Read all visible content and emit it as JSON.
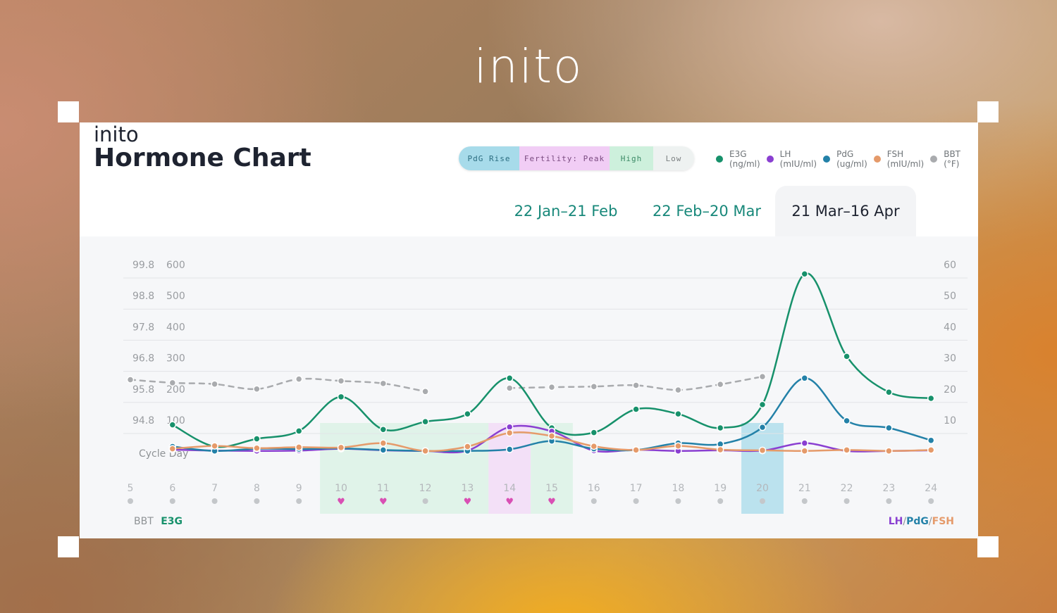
{
  "page": {
    "brand_top": "inito",
    "card": {
      "brand": "inito",
      "title": "Hormone Chart"
    }
  },
  "status_legend": {
    "pdg_rise": "PdG Rise",
    "fertility_peak": "Fertility: Peak",
    "high": "High",
    "low": "Low",
    "colors": {
      "pdg_rise": "#a7dbea",
      "fertility_peak": "#f1cdf5",
      "high": "#cdf0dc",
      "low": "#eef2f1"
    }
  },
  "series_legend": [
    {
      "name": "E3G",
      "unit": "(ng/ml)",
      "color": "#17916b"
    },
    {
      "name": "LH",
      "unit": "(mIU/ml)",
      "color": "#8a3fd1"
    },
    {
      "name": "PdG",
      "unit": "(ug/ml)",
      "color": "#2381a8"
    },
    {
      "name": "FSH",
      "unit": "(mIU/ml)",
      "color": "#e59a6a"
    },
    {
      "name": "BBT",
      "unit": "(°F)",
      "color": "#a9abae"
    }
  ],
  "tabs": [
    {
      "label": "22 Jan–21 Feb"
    },
    {
      "label": "22 Feb–20 Mar"
    },
    {
      "label": "21 Mar–16 Apr",
      "selected": true
    }
  ],
  "axis_tags": {
    "bbt": "BBT",
    "e3g": "E3G",
    "lh": "LH",
    "pdg": "PdG",
    "fsh": "FSH",
    "sep": "/"
  },
  "chart_data": {
    "type": "line",
    "x_label": "Cycle Day",
    "x": [
      5,
      6,
      7,
      8,
      9,
      10,
      11,
      12,
      13,
      14,
      15,
      16,
      17,
      18,
      19,
      20,
      21,
      22,
      23,
      24
    ],
    "left_axis_bbt": {
      "ticks": [
        "99.8",
        "98.8",
        "97.8",
        "96.8",
        "95.8",
        "94.8"
      ],
      "values": [
        99.8,
        98.8,
        97.8,
        96.8,
        95.8,
        94.8
      ]
    },
    "left_axis_e3g": {
      "ticks": [
        "600",
        "500",
        "400",
        "300",
        "200",
        "100"
      ],
      "values": [
        600,
        500,
        400,
        300,
        200,
        100
      ]
    },
    "right_axis": {
      "ticks": [
        "60",
        "50",
        "40",
        "30",
        "20",
        "10"
      ],
      "values": [
        60,
        50,
        40,
        30,
        20,
        10
      ]
    },
    "e3g_ylim": [
      -20,
      600
    ],
    "right_ylim": [
      -2,
      60
    ],
    "bbt_ylim": [
      93.6,
      99.8
    ],
    "grid": true,
    "series": [
      {
        "name": "BBT",
        "axis": "bbt",
        "style": "dashed",
        "color": "#a9abae",
        "x": [
          5,
          6,
          7,
          8,
          9,
          10,
          11,
          12
        ],
        "values": [
          96.1,
          96.0,
          95.96,
          95.8,
          96.12,
          96.06,
          95.98,
          95.72
        ]
      },
      {
        "name": "BBT",
        "axis": "bbt",
        "style": "dashed",
        "color": "#a9abae",
        "x": [
          14,
          15,
          16,
          17,
          18,
          19,
          20
        ],
        "values": [
          95.83,
          95.86,
          95.88,
          95.92,
          95.77,
          95.95,
          96.2
        ]
      },
      {
        "name": "E3G",
        "axis": "e3g",
        "style": "solid",
        "color": "#17916b",
        "x": [
          6,
          7,
          8,
          9,
          10,
          11,
          12,
          13,
          14,
          15,
          16,
          17,
          18,
          19,
          20,
          21,
          22,
          23,
          24
        ],
        "values": [
          85,
          15,
          40,
          65,
          175,
          70,
          95,
          120,
          235,
          75,
          60,
          135,
          120,
          75,
          150,
          570,
          305,
          190,
          170
        ]
      },
      {
        "name": "LH",
        "axis": "right",
        "style": "solid",
        "color": "#8a3fd1",
        "x": [
          6,
          7,
          8,
          9,
          10,
          11,
          12,
          13,
          14,
          15,
          16,
          17,
          18,
          19,
          20,
          21,
          22,
          23,
          24
        ],
        "values": [
          0.5,
          0.2,
          0.1,
          0.2,
          0.8,
          0.3,
          0.1,
          0.2,
          7.8,
          6.4,
          0.2,
          0.5,
          0.1,
          0.3,
          0.2,
          2.6,
          0.1,
          0.1,
          0.3
        ]
      },
      {
        "name": "PdG",
        "axis": "right",
        "style": "solid",
        "color": "#2381a8",
        "x": [
          6,
          7,
          8,
          9,
          10,
          11,
          12,
          13,
          14,
          15,
          16,
          17,
          18,
          19,
          20,
          21,
          22,
          23,
          24
        ],
        "values": [
          1.5,
          0.1,
          0.8,
          0.7,
          0.9,
          0.4,
          0.1,
          0.1,
          0.6,
          3.3,
          0.8,
          0.4,
          2.6,
          2.3,
          7.7,
          23.5,
          9.8,
          7.5,
          3.5
        ]
      },
      {
        "name": "FSH",
        "axis": "right",
        "style": "solid",
        "color": "#e59a6a",
        "x": [
          6,
          7,
          8,
          9,
          10,
          11,
          12,
          13,
          14,
          15,
          16,
          17,
          18,
          19,
          20,
          21,
          22,
          23,
          24
        ],
        "values": [
          0.8,
          1.7,
          1.0,
          1.3,
          1.2,
          2.6,
          0.1,
          1.5,
          5.9,
          4.9,
          1.6,
          0.4,
          1.7,
          0.5,
          0.3,
          0.1,
          0.4,
          0.1,
          0.4
        ]
      }
    ],
    "day_markers": [
      {
        "day": 5,
        "marker": "dot"
      },
      {
        "day": 6,
        "marker": "dot"
      },
      {
        "day": 7,
        "marker": "dot"
      },
      {
        "day": 8,
        "marker": "dot"
      },
      {
        "day": 9,
        "marker": "dot"
      },
      {
        "day": 10,
        "marker": "heart"
      },
      {
        "day": 11,
        "marker": "heart"
      },
      {
        "day": 12,
        "marker": "dot"
      },
      {
        "day": 13,
        "marker": "heart"
      },
      {
        "day": 14,
        "marker": "heart"
      },
      {
        "day": 15,
        "marker": "heart"
      },
      {
        "day": 16,
        "marker": "dot"
      },
      {
        "day": 17,
        "marker": "dot"
      },
      {
        "day": 18,
        "marker": "dot"
      },
      {
        "day": 19,
        "marker": "dot"
      },
      {
        "day": 20,
        "marker": "dot"
      },
      {
        "day": 21,
        "marker": "dot"
      },
      {
        "day": 22,
        "marker": "dot"
      },
      {
        "day": 23,
        "marker": "dot"
      },
      {
        "day": 24,
        "marker": "dot"
      }
    ],
    "highlight_bands": [
      {
        "from": 10,
        "to": 13,
        "status": "high"
      },
      {
        "from": 14,
        "to": 14,
        "status": "fertility_peak"
      },
      {
        "from": 15,
        "to": 15,
        "status": "high"
      },
      {
        "from": 20,
        "to": 20,
        "status": "pdg_rise"
      }
    ],
    "colors": {
      "marker_dot": "#c4c7ca",
      "marker_heart": "#d94fb4",
      "grid": "#e2e4e7",
      "tick": "#9a9da1"
    }
  }
}
